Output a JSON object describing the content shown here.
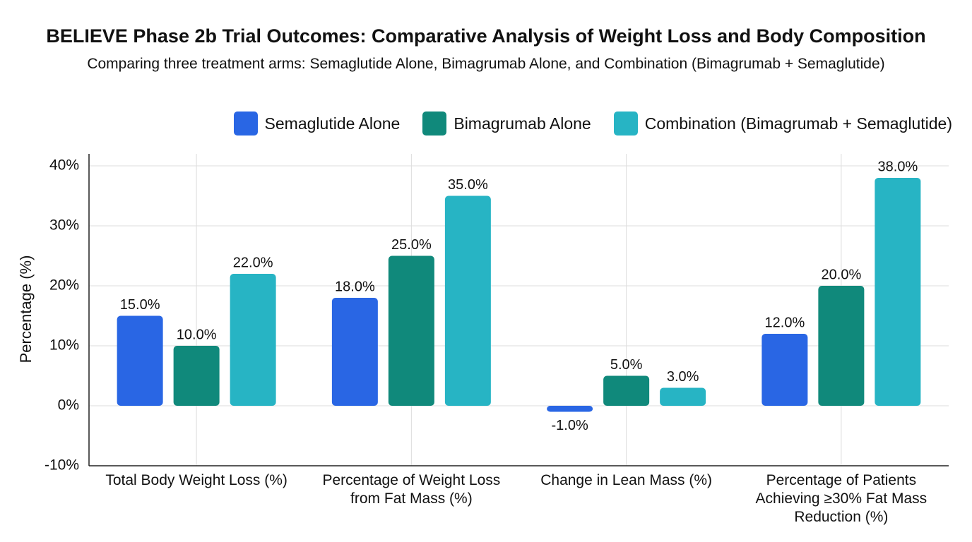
{
  "chart_data": {
    "type": "bar",
    "title": "BELIEVE Phase 2b Trial Outcomes: Comparative Analysis of Weight Loss and Body Composition",
    "subtitle": "Comparing three treatment arms: Semaglutide Alone, Bimagrumab Alone, and Combination (Bimagrumab + Semaglutide)",
    "y_label": "Percentage (%)",
    "categories": [
      "Total Body Weight Loss (%)",
      "Percentage of Weight Loss from Fat Mass (%)",
      "Change in Lean Mass (%)",
      "Percentage of Patients Achieving ≥30% Fat Mass Reduction (%)"
    ],
    "series": [
      {
        "name": "Semaglutide Alone",
        "color": "#2966e4",
        "values": [
          15,
          18,
          -1,
          12
        ],
        "value_labels": [
          "15.0%",
          "18.0%",
          "-1.0%",
          "12.0%"
        ]
      },
      {
        "name": "Bimagrumab Alone",
        "color": "#10897b",
        "values": [
          10,
          25,
          5,
          20
        ],
        "value_labels": [
          "10.0%",
          "25.0%",
          "5.0%",
          "20.0%"
        ]
      },
      {
        "name": "Combination (Bimagrumab + Semaglutide)",
        "color": "#27b4c4",
        "values": [
          22,
          35,
          3,
          38
        ],
        "value_labels": [
          "22.0%",
          "35.0%",
          "3.0%",
          "38.0%"
        ]
      }
    ],
    "ylim": [
      -10,
      42
    ],
    "yticks": [
      {
        "value": -10,
        "label": "-10%"
      },
      {
        "value": 0,
        "label": "0%"
      },
      {
        "value": 10,
        "label": "10%"
      },
      {
        "value": 20,
        "label": "20%"
      },
      {
        "value": 30,
        "label": "30%"
      },
      {
        "value": 40,
        "label": "40%"
      }
    ],
    "grid": true
  }
}
